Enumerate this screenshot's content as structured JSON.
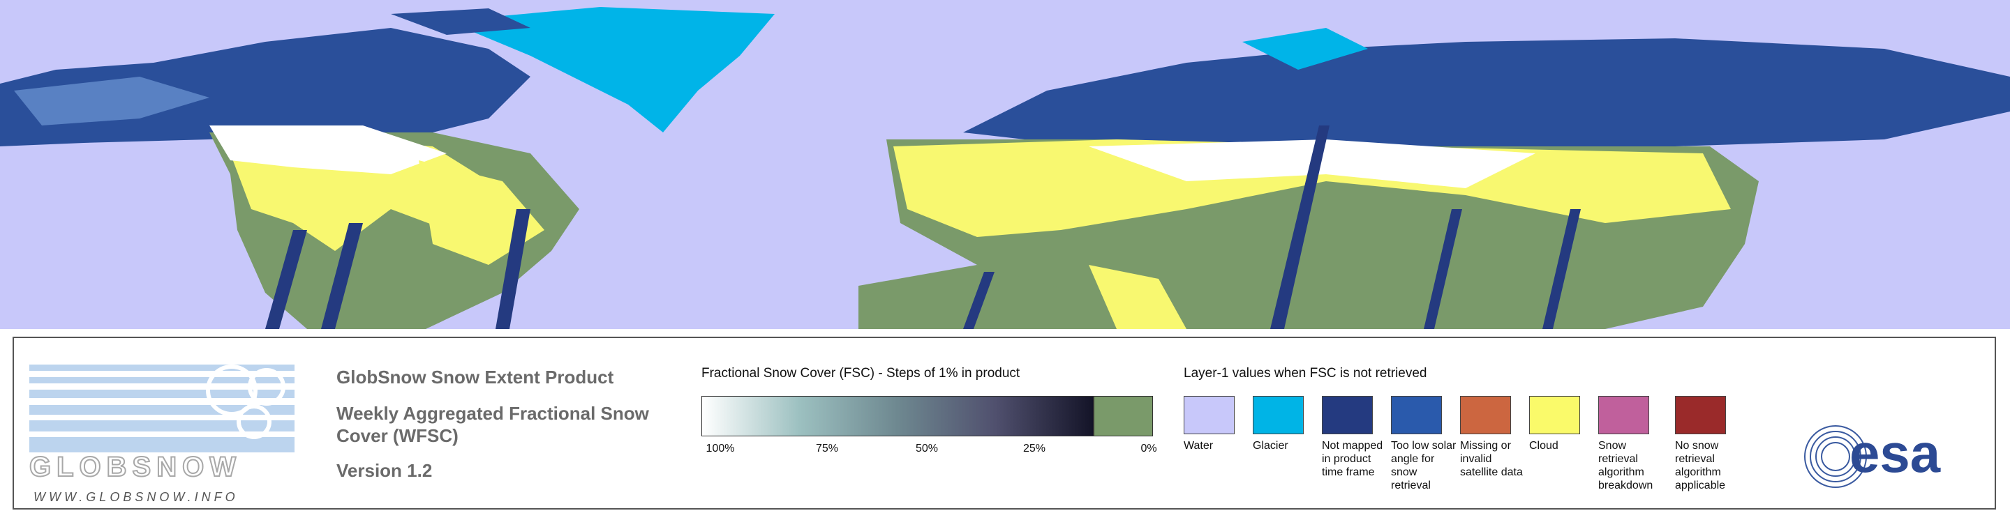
{
  "logo": {
    "name": "GLOBSNOW",
    "url": "WWW.GLOBSNOW.INFO"
  },
  "product": {
    "title": "GlobSnow Snow Extent Product",
    "subtitle": "Weekly Aggregated Fractional Snow Cover (WFSC)",
    "version": "Version 1.2"
  },
  "fsc_legend": {
    "title": "Fractional Snow Cover (FSC) - Steps of 1% in product",
    "ticks": [
      "100%",
      "75%",
      "50%",
      "25%",
      "0%"
    ]
  },
  "layer1_legend": {
    "title": "Layer-1 values when FSC is not retrieved",
    "items": [
      {
        "label": "Water",
        "color": "#c8c8fa"
      },
      {
        "label": "Glacier",
        "color": "#00b4e6"
      },
      {
        "label": "Not mapped in product time frame",
        "color": "#243a80"
      },
      {
        "label": "Too low solar angle for snow retrieval",
        "color": "#2a5aac"
      },
      {
        "label": "Missing or invalid satellite data",
        "color": "#cc6640"
      },
      {
        "label": "Cloud",
        "color": "#fafa6a"
      },
      {
        "label": "Snow retrieval algorithm breakdown",
        "color": "#c0609c"
      },
      {
        "label": "No snow retrieval algorithm applicable",
        "color": "#9a2a2a"
      }
    ]
  },
  "agency": "esa"
}
